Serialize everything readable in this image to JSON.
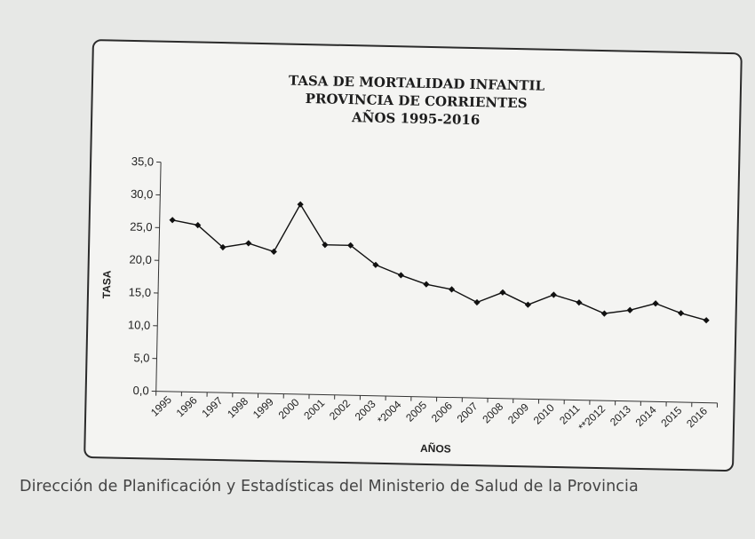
{
  "chart_data": {
    "type": "line",
    "title_lines": [
      "TASA DE MORTALIDAD INFANTIL",
      "PROVINCIA DE CORRIENTES",
      "AÑOS 1995-2016"
    ],
    "xlabel": "AÑOS",
    "ylabel": "TASA",
    "ylim": [
      0,
      35
    ],
    "yticks": [
      "0,0",
      "5,0",
      "10,0",
      "15,0",
      "20,0",
      "25,0",
      "30,0",
      "35,0"
    ],
    "categories": [
      "1995",
      "1996",
      "1997",
      "1998",
      "1999",
      "2000",
      "2001",
      "2002",
      "2003",
      "*2004",
      "2005",
      "2006",
      "2007",
      "2008",
      "2009",
      "2010",
      "2011",
      "**2012",
      "2013",
      "2014",
      "2015",
      "2016"
    ],
    "series": [
      {
        "name": "Tasa de mortalidad infantil",
        "values": [
          26.2,
          25.5,
          22.2,
          22.9,
          21.7,
          29.0,
          22.9,
          22.9,
          20.0,
          18.5,
          17.2,
          16.5,
          14.6,
          16.2,
          14.4,
          16.0,
          14.9,
          13.3,
          13.9,
          15.0,
          13.6,
          12.6
        ]
      }
    ],
    "grid": false,
    "legend": "none"
  },
  "caption": "Dirección de Planificación y Estadísticas del Ministerio de Salud de la Provincia"
}
